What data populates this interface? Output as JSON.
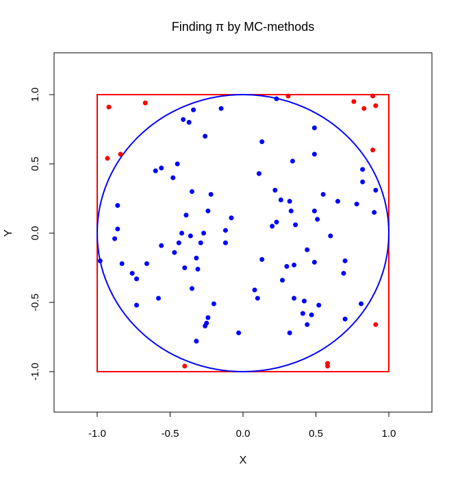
{
  "chart_data": {
    "type": "scatter",
    "title": "Finding π by MC-methods",
    "xlabel": "X",
    "ylabel": "Y",
    "xlim": [
      -1.3,
      1.3
    ],
    "ylim": [
      -1.3,
      1.3
    ],
    "x_ticks": [
      "-1.0",
      "-0.5",
      "0.0",
      "0.5",
      "1.0"
    ],
    "y_ticks": [
      "-1.0",
      "-0.5",
      "0.0",
      "0.5",
      "1.0"
    ],
    "grid": false,
    "legend": "none",
    "shapes": {
      "square": {
        "x": [
          -1,
          1
        ],
        "y": [
          -1,
          1
        ],
        "color": "#ff0000"
      },
      "circle": {
        "center": [
          0,
          0
        ],
        "radius": 1,
        "color": "#0000ff"
      }
    },
    "series": [
      {
        "color": "#0000ff",
        "points": [
          [
            0.23,
            0.97
          ],
          [
            -0.34,
            0.89
          ],
          [
            -0.15,
            0.9
          ],
          [
            -0.41,
            0.82
          ],
          [
            -0.37,
            0.8
          ],
          [
            0.49,
            0.76
          ],
          [
            -0.26,
            0.7
          ],
          [
            0.13,
            0.66
          ],
          [
            0.49,
            0.57
          ],
          [
            0.34,
            0.52
          ],
          [
            -0.45,
            0.5
          ],
          [
            -0.56,
            0.47
          ],
          [
            -0.6,
            0.45
          ],
          [
            0.82,
            0.46
          ],
          [
            -0.48,
            0.4
          ],
          [
            0.11,
            0.43
          ],
          [
            0.82,
            0.37
          ],
          [
            0.91,
            0.31
          ],
          [
            0.22,
            0.31
          ],
          [
            -0.35,
            0.3
          ],
          [
            0.55,
            0.28
          ],
          [
            -0.22,
            0.28
          ],
          [
            0.26,
            0.24
          ],
          [
            0.32,
            0.23
          ],
          [
            0.65,
            0.23
          ],
          [
            0.78,
            0.21
          ],
          [
            -0.86,
            0.2
          ],
          [
            0.33,
            0.16
          ],
          [
            0.49,
            0.16
          ],
          [
            -0.24,
            0.16
          ],
          [
            0.9,
            0.15
          ],
          [
            -0.39,
            0.13
          ],
          [
            -0.08,
            0.11
          ],
          [
            0.51,
            0.1
          ],
          [
            0.23,
            0.08
          ],
          [
            0.36,
            0.06
          ],
          [
            0.2,
            0.05
          ],
          [
            -0.86,
            0.03
          ],
          [
            -0.12,
            0.02
          ],
          [
            -0.27,
            0.0
          ],
          [
            -0.42,
            0.0
          ],
          [
            -0.36,
            -0.02
          ],
          [
            0.6,
            -0.02
          ],
          [
            -0.88,
            -0.04
          ],
          [
            -0.44,
            -0.07
          ],
          [
            -0.29,
            -0.07
          ],
          [
            -0.12,
            -0.07
          ],
          [
            -0.56,
            -0.09
          ],
          [
            0.44,
            -0.12
          ],
          [
            -0.47,
            -0.14
          ],
          [
            -0.32,
            -0.18
          ],
          [
            0.13,
            -0.19
          ],
          [
            -0.98,
            -0.2
          ],
          [
            0.7,
            -0.2
          ],
          [
            0.49,
            -0.21
          ],
          [
            -0.83,
            -0.22
          ],
          [
            -0.66,
            -0.22
          ],
          [
            0.35,
            -0.23
          ],
          [
            0.3,
            -0.24
          ],
          [
            -0.4,
            -0.25
          ],
          [
            -0.31,
            -0.26
          ],
          [
            -0.76,
            -0.29
          ],
          [
            0.69,
            -0.29
          ],
          [
            -0.73,
            -0.33
          ],
          [
            0.27,
            -0.34
          ],
          [
            -0.35,
            -0.4
          ],
          [
            0.08,
            -0.41
          ],
          [
            0.1,
            -0.47
          ],
          [
            -0.58,
            -0.47
          ],
          [
            0.35,
            -0.47
          ],
          [
            0.42,
            -0.49
          ],
          [
            -0.2,
            -0.51
          ],
          [
            0.81,
            -0.51
          ],
          [
            -0.73,
            -0.52
          ],
          [
            0.52,
            -0.52
          ],
          [
            0.41,
            -0.58
          ],
          [
            0.47,
            -0.59
          ],
          [
            -0.24,
            -0.61
          ],
          [
            0.7,
            -0.62
          ],
          [
            -0.25,
            -0.65
          ],
          [
            -0.26,
            -0.67
          ],
          [
            0.44,
            -0.66
          ],
          [
            -0.03,
            -0.72
          ],
          [
            0.32,
            -0.72
          ],
          [
            -0.32,
            -0.78
          ]
        ]
      },
      {
        "color": "#ff0000",
        "points": [
          [
            0.31,
            0.99
          ],
          [
            0.89,
            0.99
          ],
          [
            0.76,
            0.95
          ],
          [
            -0.67,
            0.94
          ],
          [
            0.91,
            0.92
          ],
          [
            -0.92,
            0.91
          ],
          [
            0.83,
            0.9
          ],
          [
            0.89,
            0.6
          ],
          [
            -0.84,
            0.57
          ],
          [
            -0.93,
            0.54
          ],
          [
            0.91,
            -0.66
          ],
          [
            -0.4,
            -0.96
          ],
          [
            0.58,
            -0.94
          ],
          [
            0.58,
            -0.96
          ]
        ]
      }
    ]
  }
}
